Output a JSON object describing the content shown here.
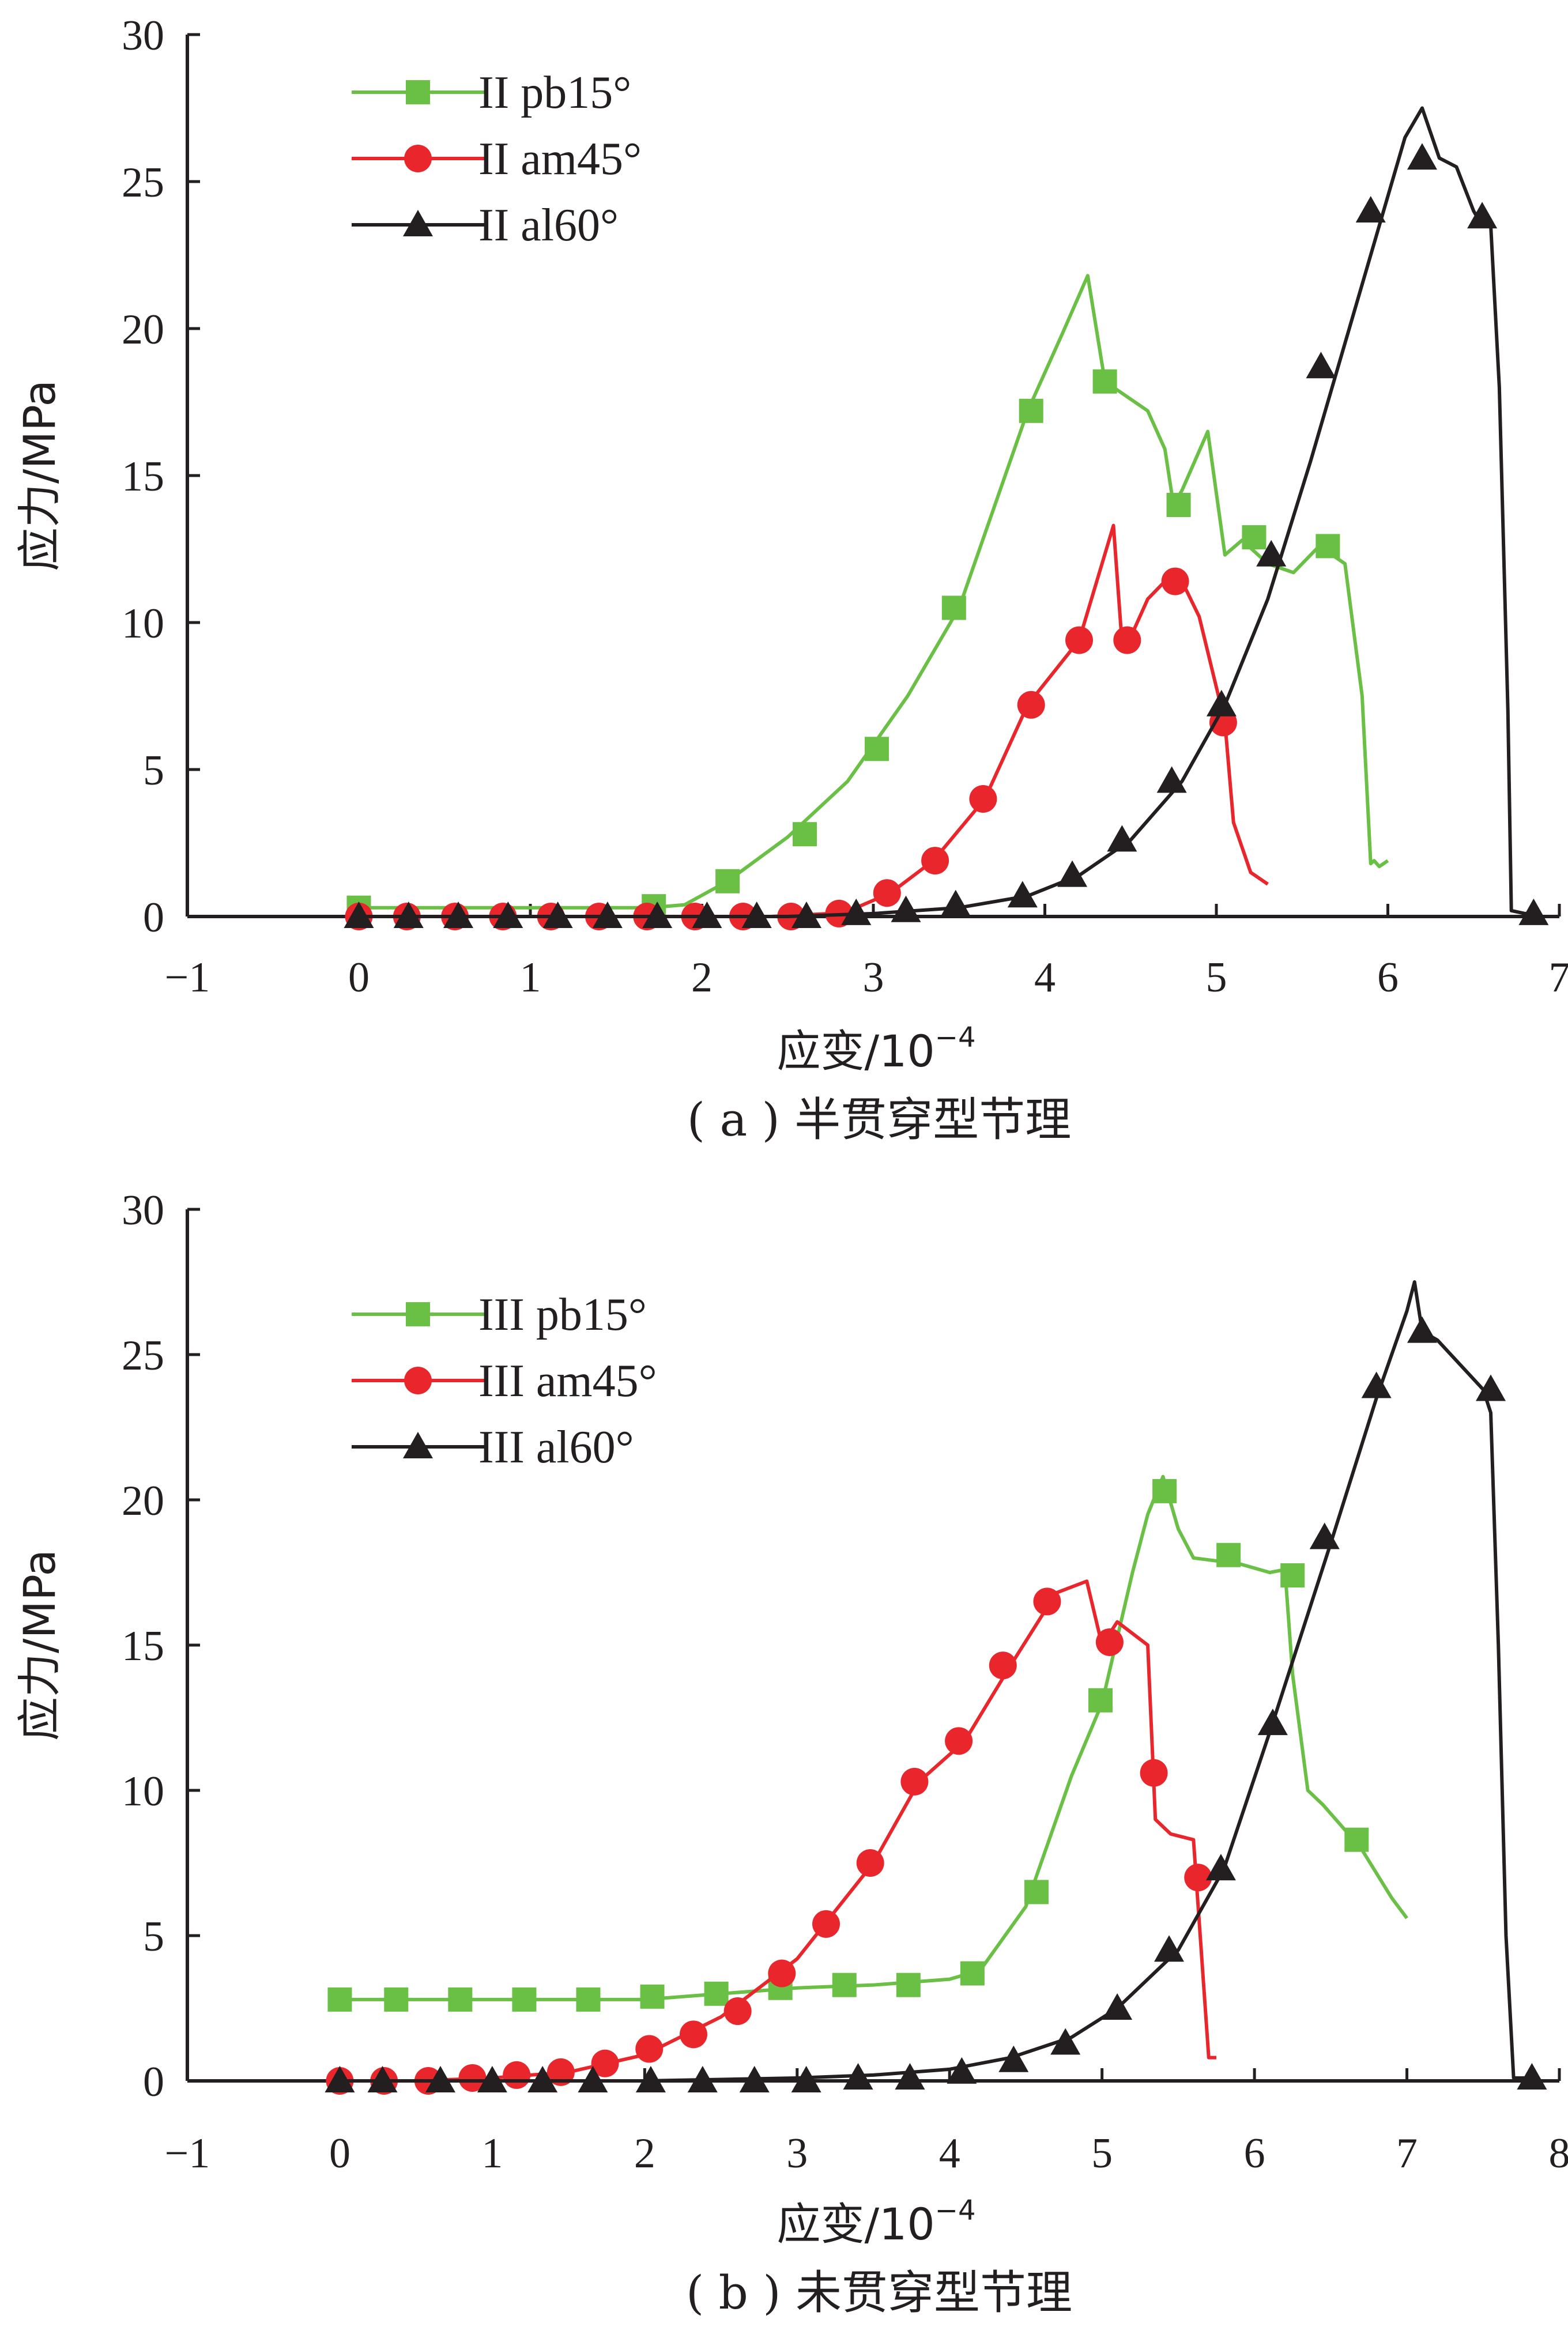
{
  "chart_data": [
    {
      "type": "line",
      "caption": "( a ) 半贯穿型节理",
      "xlabel": "应变/10",
      "xlabel_sup": "−4",
      "ylabel": "应力/MPa",
      "xlim": [
        -1,
        7
      ],
      "ylim": [
        0,
        30
      ],
      "xticks": [
        "−1",
        "0",
        "1",
        "2",
        "3",
        "4",
        "5",
        "6",
        "7"
      ],
      "yticks": [
        "0",
        "5",
        "10",
        "15",
        "20",
        "25",
        "30"
      ],
      "series": [
        {
          "name": "II pb15°",
          "color": "#6abf45",
          "marker": "square",
          "x": [
            0,
            0.3,
            0.6,
            0.9,
            1.2,
            1.5,
            1.7,
            1.9,
            2.15,
            2.5,
            2.85,
            3.2,
            3.5,
            3.9,
            4.1,
            4.25,
            4.35,
            4.45,
            4.6,
            4.7,
            4.75,
            4.8,
            4.95,
            5.05,
            5.15,
            5.3,
            5.45,
            5.6,
            5.75,
            5.85,
            5.9,
            5.92,
            5.95,
            6.0
          ],
          "y": [
            0.3,
            0.3,
            0.3,
            0.3,
            0.3,
            0.3,
            0.3,
            0.4,
            1.2,
            2.7,
            4.6,
            7.5,
            10.5,
            17.2,
            19.8,
            21.8,
            18.2,
            17.8,
            17.2,
            15.9,
            14.0,
            14.5,
            16.5,
            12.3,
            12.8,
            12.0,
            11.7,
            12.6,
            12.0,
            7.5,
            1.8,
            1.9,
            1.7,
            1.9
          ],
          "marker_x": [
            0,
            1.72,
            2.15,
            2.6,
            3.02,
            3.47,
            3.92,
            4.35,
            4.78,
            5.22,
            5.65
          ],
          "marker_y": [
            0.3,
            0.35,
            1.2,
            2.8,
            5.7,
            10.5,
            17.2,
            18.2,
            14.0,
            12.9,
            12.6
          ]
        },
        {
          "name": "II am45°",
          "color": "#e8262c",
          "marker": "circle",
          "x": [
            0,
            0.3,
            0.6,
            0.9,
            1.2,
            1.5,
            1.8,
            2.1,
            2.4,
            2.75,
            2.9,
            3.1,
            3.35,
            3.65,
            3.9,
            4.2,
            4.4,
            4.45,
            4.5,
            4.6,
            4.7,
            4.8,
            4.9,
            5.0,
            5.05,
            5.1,
            5.2,
            5.3
          ],
          "y": [
            0,
            0,
            0,
            0,
            0,
            0,
            0,
            0,
            0,
            0.1,
            0.3,
            0.8,
            1.9,
            4.0,
            7.2,
            9.4,
            13.3,
            9.3,
            9.5,
            10.8,
            11.4,
            11.4,
            10.2,
            7.8,
            6.6,
            3.2,
            1.5,
            1.1
          ],
          "marker_x": [
            0,
            0.28,
            0.56,
            0.84,
            1.12,
            1.4,
            1.68,
            1.96,
            2.24,
            2.52,
            2.8,
            3.08,
            3.36,
            3.64,
            3.92,
            4.2,
            4.48,
            4.76,
            5.04
          ],
          "marker_y": [
            0,
            0,
            0,
            0,
            0,
            0,
            0,
            0,
            0,
            0,
            0.1,
            0.8,
            1.9,
            4.0,
            7.2,
            9.4,
            9.4,
            11.4,
            6.6
          ]
        },
        {
          "name": "II al60°",
          "color": "#231f20",
          "marker": "triangle",
          "x": [
            0,
            0.5,
            1.0,
            1.5,
            2.0,
            2.5,
            3.0,
            3.5,
            3.9,
            4.2,
            4.5,
            4.8,
            5.05,
            5.3,
            5.55,
            5.8,
            6.0,
            6.1,
            6.2,
            6.3,
            6.4,
            6.5,
            6.55,
            6.6,
            6.65,
            6.7,
            6.72,
            6.8,
            6.85
          ],
          "y": [
            0,
            0,
            0,
            0,
            0,
            0,
            0.1,
            0.3,
            0.7,
            1.4,
            2.6,
            4.6,
            7.2,
            10.8,
            15.5,
            20.5,
            24.5,
            26.5,
            27.5,
            25.8,
            25.5,
            24.0,
            23.5,
            23.5,
            18.0,
            7.0,
            0.2,
            0.1,
            0.1
          ],
          "marker_x": [
            0,
            0.29,
            0.58,
            0.87,
            1.16,
            1.45,
            1.74,
            2.03,
            2.32,
            2.61,
            2.9,
            3.19,
            3.48,
            3.87,
            4.16,
            4.45,
            4.74,
            5.03,
            5.32,
            5.61,
            5.9,
            6.2,
            6.55,
            6.85
          ],
          "marker_y": [
            0,
            0,
            0,
            0,
            0,
            0,
            0,
            0,
            0,
            0,
            0.1,
            0.2,
            0.4,
            0.7,
            1.4,
            2.6,
            4.6,
            7.2,
            12.3,
            18.7,
            24.0,
            25.8,
            23.8,
            0.1
          ]
        }
      ]
    },
    {
      "type": "line",
      "caption": "( b ) 未贯穿型节理",
      "xlabel": "应变/10",
      "xlabel_sup": "−4",
      "ylabel": "应力/MPa",
      "xlim": [
        -1,
        8
      ],
      "ylim": [
        0,
        30
      ],
      "xticks": [
        "−1",
        "0",
        "1",
        "2",
        "3",
        "4",
        "5",
        "6",
        "7",
        "8"
      ],
      "yticks": [
        "0",
        "5",
        "10",
        "15",
        "20",
        "25",
        "30"
      ],
      "series": [
        {
          "name": "III pb15°",
          "color": "#6abf45",
          "marker": "square",
          "x": [
            0,
            0.5,
            1.0,
            1.5,
            2.0,
            2.5,
            3.0,
            3.5,
            4.0,
            4.2,
            4.5,
            4.8,
            5.0,
            5.2,
            5.3,
            5.4,
            5.5,
            5.6,
            5.9,
            6.1,
            6.2,
            6.25,
            6.35,
            6.45,
            6.7,
            6.9,
            7.0
          ],
          "y": [
            2.8,
            2.8,
            2.8,
            2.8,
            2.8,
            3.0,
            3.2,
            3.3,
            3.5,
            3.8,
            6.0,
            10.5,
            13.0,
            17.5,
            19.5,
            20.8,
            19.0,
            18.0,
            17.8,
            17.5,
            17.6,
            14.0,
            10.0,
            9.5,
            8.0,
            6.3,
            5.6
          ],
          "marker_x": [
            0,
            0.37,
            0.79,
            1.21,
            1.63,
            2.05,
            2.47,
            2.89,
            3.31,
            3.73,
            4.15,
            4.57,
            4.99,
            5.41,
            5.83,
            6.25,
            6.67
          ],
          "marker_y": [
            2.8,
            2.8,
            2.8,
            2.8,
            2.8,
            2.9,
            3.0,
            3.2,
            3.3,
            3.3,
            3.7,
            6.5,
            13.1,
            20.3,
            18.1,
            17.4,
            8.3
          ]
        },
        {
          "name": "III am45°",
          "color": "#e8262c",
          "marker": "circle",
          "x": [
            0,
            0.5,
            1.0,
            1.5,
            2.0,
            2.5,
            3.0,
            3.5,
            3.8,
            4.1,
            4.4,
            4.7,
            4.9,
            5.0,
            5.1,
            5.3,
            5.35,
            5.45,
            5.6,
            5.7,
            5.75
          ],
          "y": [
            0,
            0,
            0.1,
            0.3,
            0.9,
            2.2,
            4.2,
            7.5,
            10.3,
            11.7,
            14.3,
            16.8,
            17.2,
            15.0,
            15.8,
            15.0,
            9.0,
            8.5,
            8.3,
            0.8,
            0.8
          ],
          "marker_x": [
            0,
            0.29,
            0.58,
            0.87,
            1.16,
            1.45,
            1.74,
            2.03,
            2.32,
            2.61,
            2.9,
            3.19,
            3.48,
            3.77,
            4.06,
            4.35,
            4.64,
            5.05,
            5.34,
            5.63
          ],
          "marker_y": [
            0,
            0,
            0,
            0.1,
            0.2,
            0.3,
            0.6,
            1.1,
            1.6,
            2.4,
            3.7,
            5.4,
            7.5,
            10.3,
            11.7,
            14.3,
            16.5,
            15.1,
            10.6,
            7.0
          ]
        },
        {
          "name": "III al60°",
          "color": "#231f20",
          "marker": "triangle",
          "x": [
            0,
            0.5,
            1.0,
            2.0,
            3.0,
            3.5,
            4.0,
            4.4,
            4.8,
            5.1,
            5.5,
            5.8,
            6.1,
            6.5,
            6.8,
            7.0,
            7.05,
            7.1,
            7.2,
            7.5,
            7.55,
            7.6,
            7.65,
            7.7,
            7.82
          ],
          "y": [
            0,
            0,
            0,
            0,
            0.1,
            0.2,
            0.4,
            0.8,
            1.5,
            2.5,
            4.5,
            7.3,
            12.0,
            18.5,
            23.5,
            26.5,
            27.5,
            25.8,
            25.5,
            23.8,
            23.0,
            15.0,
            5.0,
            0.1,
            0.1
          ],
          "marker_x": [
            0,
            0.28,
            0.66,
            1.0,
            1.33,
            1.66,
            2.04,
            2.38,
            2.72,
            3.06,
            3.4,
            3.74,
            4.08,
            4.42,
            4.76,
            5.1,
            5.44,
            5.78,
            6.12,
            6.46,
            6.8,
            7.1,
            7.55,
            7.82
          ],
          "marker_y": [
            0,
            0,
            0,
            0,
            0,
            0,
            0,
            0,
            0,
            0,
            0.1,
            0.1,
            0.3,
            0.7,
            1.3,
            2.5,
            4.5,
            7.3,
            12.3,
            18.7,
            23.9,
            25.8,
            23.8,
            0.1
          ]
        }
      ]
    }
  ]
}
